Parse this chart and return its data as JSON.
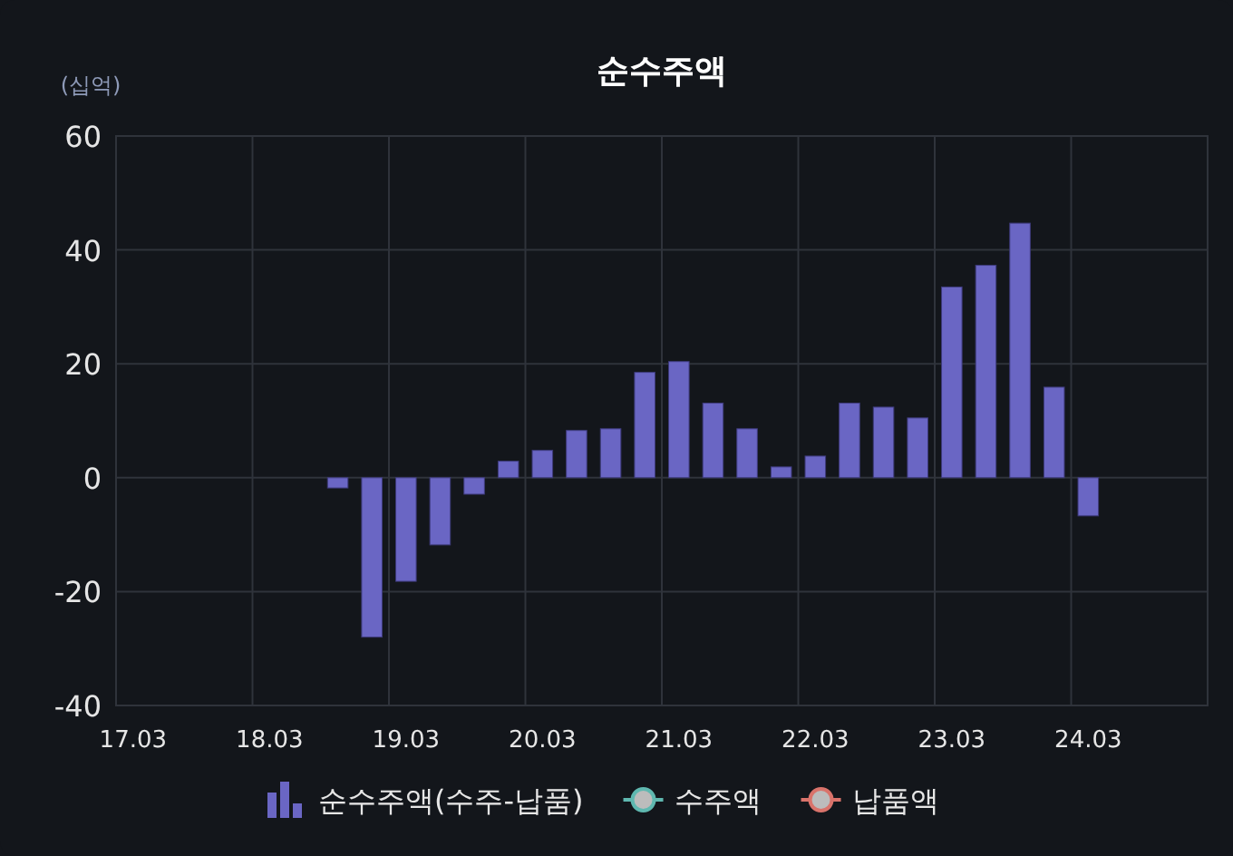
{
  "chart_data": {
    "type": "bar",
    "title": "순수주액",
    "ylabel": "(십억)",
    "categories": [
      "17.03",
      null,
      null,
      null,
      "18.03",
      null,
      null,
      null,
      "19.03",
      null,
      null,
      null,
      "20.03",
      null,
      null,
      null,
      "21.03",
      null,
      null,
      null,
      "22.03",
      null,
      null,
      null,
      "23.03",
      null,
      null,
      null,
      "24.03",
      null,
      null,
      null
    ],
    "series": [
      {
        "name": "순수주액(수주-납품)",
        "color": "#6a66c4",
        "values": [
          null,
          null,
          null,
          null,
          null,
          null,
          -1.8,
          -28,
          -18.2,
          -11.8,
          -2.9,
          2.9,
          4.8,
          8.3,
          8.6,
          18.5,
          20.4,
          13.1,
          8.6,
          1.9,
          3.8,
          13.1,
          12.4,
          10.5,
          33.5,
          37.3,
          44.7,
          15.9,
          -6.7,
          null,
          null,
          null
        ]
      },
      {
        "name": "수주액",
        "type": "line",
        "color": "#5fb8b0",
        "values": [
          null,
          null,
          null,
          null,
          null,
          null,
          null,
          null,
          null,
          null,
          null,
          null,
          null,
          null,
          null,
          null,
          null,
          null,
          null,
          null,
          null,
          null,
          null,
          null,
          null,
          null,
          null,
          null,
          null,
          null,
          null,
          null
        ]
      },
      {
        "name": "납품액",
        "type": "line",
        "color": "#d9736b",
        "values": [
          null,
          null,
          null,
          null,
          null,
          null,
          null,
          null,
          null,
          null,
          null,
          null,
          null,
          null,
          null,
          null,
          null,
          null,
          null,
          null,
          null,
          null,
          null,
          null,
          null,
          null,
          null,
          null,
          null,
          null,
          null,
          null
        ]
      }
    ],
    "ylim": [
      -40,
      60
    ],
    "yticks": [
      -40,
      -20,
      0,
      20,
      40,
      60
    ],
    "grid": true,
    "legend": "bottom",
    "marker": "circle"
  }
}
